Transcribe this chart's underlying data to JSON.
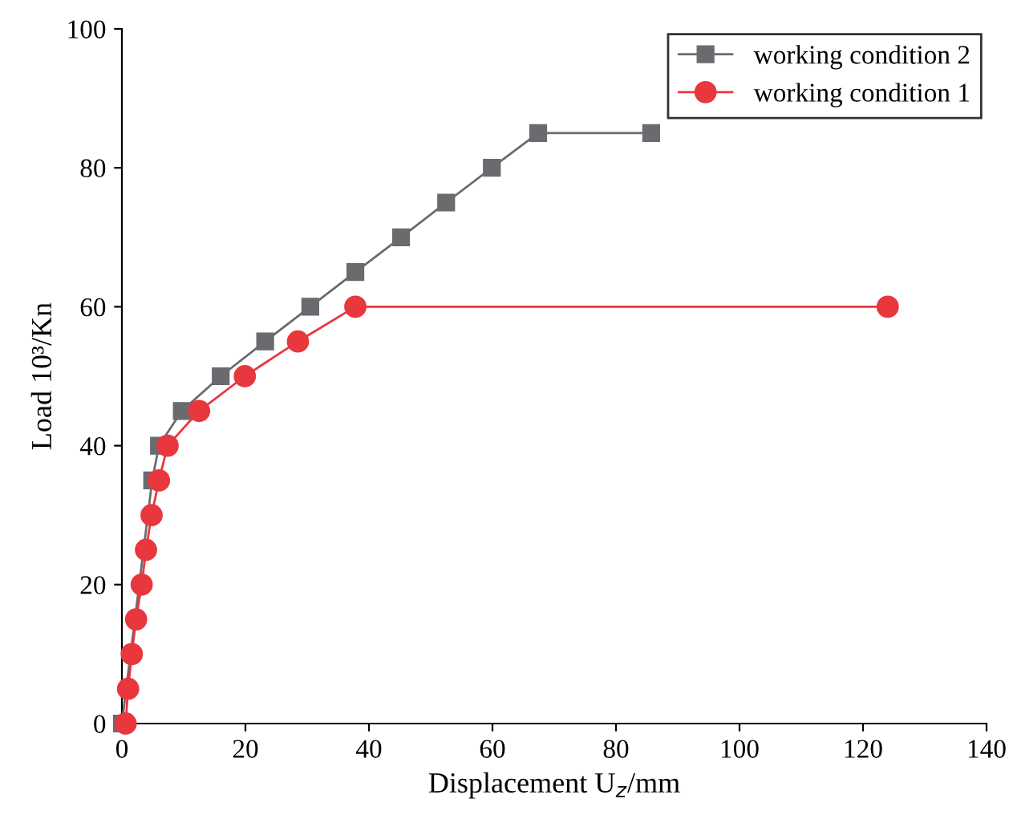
{
  "chart_data": {
    "type": "line",
    "xlabel": "Displacement U$_{z}$/mm",
    "ylabel": "Load 10³/Kn",
    "xlim": [
      0,
      140
    ],
    "xticks": [
      0,
      20,
      40,
      60,
      80,
      100,
      120,
      140
    ],
    "ylim": [
      0,
      100
    ],
    "yticks": [
      0,
      20,
      40,
      60,
      80,
      100
    ],
    "grid": false,
    "legend": "top right",
    "series": [
      {
        "name": "working condition 2",
        "color": "#6a6b6e",
        "marker": "square",
        "x": [
          0,
          4.9,
          6.0,
          9.7,
          16.0,
          23.2,
          30.5,
          37.8,
          45.2,
          52.5,
          59.9,
          67.4,
          85.7
        ],
        "values": [
          0,
          35,
          40,
          45,
          50,
          55,
          60,
          65,
          70,
          75,
          80,
          85,
          85
        ]
      },
      {
        "name": "working condition 1",
        "color": "#e8373d",
        "marker": "circle",
        "x": [
          0.6,
          1.0,
          1.6,
          2.3,
          3.2,
          3.9,
          4.8,
          6.0,
          7.4,
          12.5,
          19.9,
          28.5,
          37.8,
          124.0
        ],
        "values": [
          0,
          5,
          10,
          15,
          20,
          25,
          30,
          35,
          40,
          45,
          50,
          55,
          60,
          60
        ]
      }
    ]
  }
}
